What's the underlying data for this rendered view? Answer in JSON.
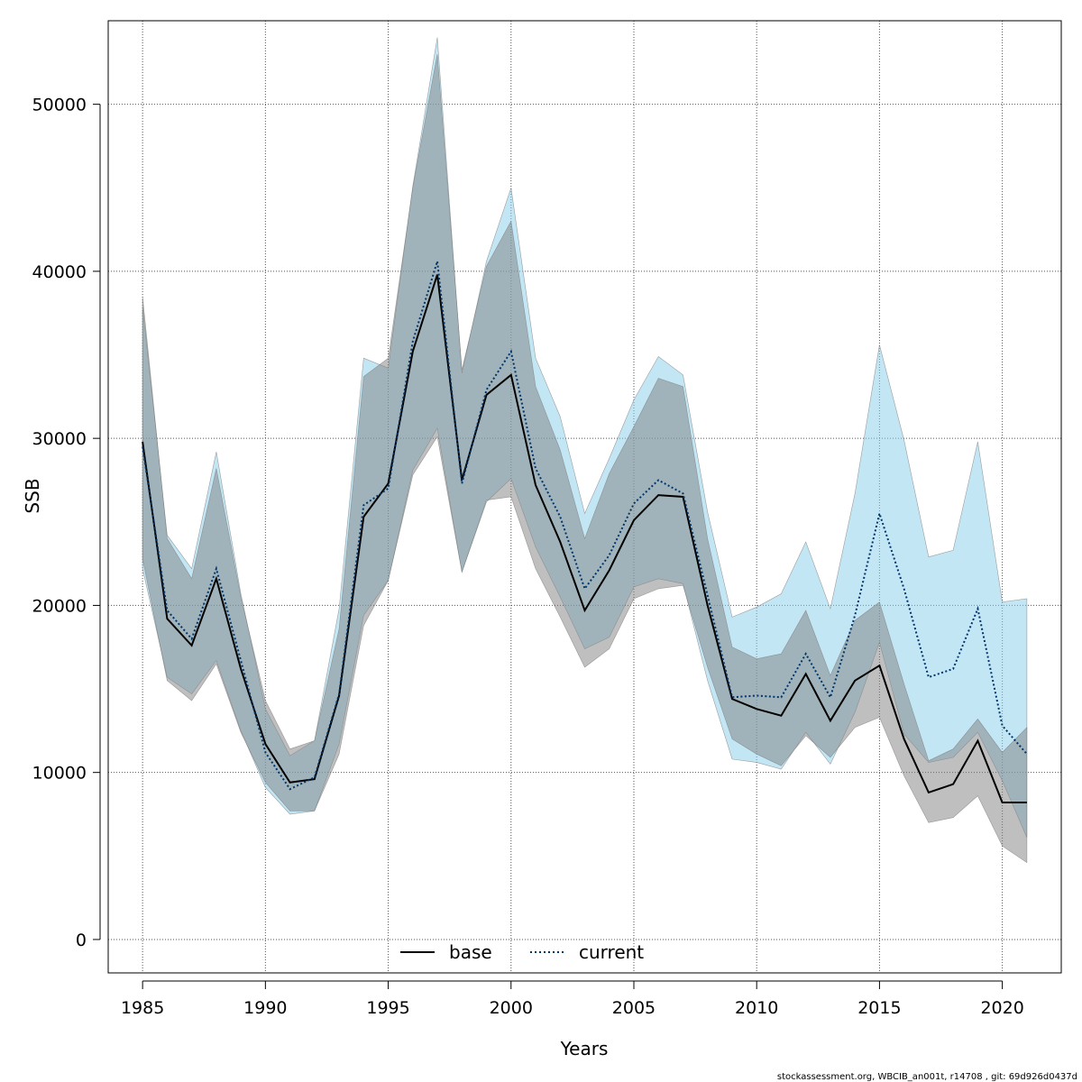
{
  "chart_data": {
    "type": "line",
    "title": "",
    "xlabel": "Years",
    "ylabel": "SSB",
    "xlim": [
      1983.6,
      2022.4
    ],
    "ylim": [
      -2000,
      55000
    ],
    "x_ticks": [
      1985,
      1990,
      1995,
      2000,
      2005,
      2010,
      2015,
      2020
    ],
    "y_ticks": [
      0,
      10000,
      20000,
      30000,
      40000,
      50000
    ],
    "grid": true,
    "legend_position": "bottom-center",
    "x": [
      1985,
      1986,
      1987,
      1988,
      1989,
      1990,
      1991,
      1992,
      1993,
      1994,
      1995,
      1996,
      1997,
      1998,
      1999,
      2000,
      2001,
      2002,
      2003,
      2004,
      2005,
      2006,
      2007,
      2008,
      2009,
      2010,
      2011,
      2012,
      2013,
      2014,
      2015,
      2016,
      2017,
      2018,
      2019,
      2020,
      2021
    ],
    "series": [
      {
        "name": "base",
        "color": "#000000",
        "line_style": "solid",
        "band_color": "#808080",
        "values": [
          29800,
          19200,
          17600,
          21600,
          16200,
          11700,
          9400,
          9600,
          14600,
          25300,
          27300,
          35200,
          39800,
          27500,
          32600,
          33800,
          27200,
          23800,
          19700,
          22100,
          25100,
          26600,
          26500,
          20000,
          14400,
          13800,
          13400,
          15900,
          13100,
          15500,
          16400,
          12000,
          8800,
          9300,
          11900,
          8200,
          8200
        ],
        "lower": [
          22800,
          15500,
          14300,
          16500,
          12400,
          9400,
          7700,
          7700,
          11100,
          18800,
          21500,
          27800,
          30100,
          22000,
          26300,
          26500,
          22200,
          19300,
          16300,
          17400,
          20400,
          21000,
          21200,
          16300,
          12000,
          11100,
          10400,
          12200,
          10900,
          12700,
          13300,
          9800,
          7000,
          7300,
          8600,
          5600,
          4600
        ],
        "upper": [
          38500,
          24000,
          21600,
          28200,
          20500,
          14300,
          11400,
          11900,
          18600,
          33700,
          34800,
          45000,
          53000,
          34100,
          40300,
          43000,
          33100,
          29300,
          24000,
          27900,
          30700,
          33600,
          33100,
          24000,
          17500,
          16800,
          17100,
          19700,
          15800,
          19100,
          20200,
          15300,
          10700,
          11400,
          13200,
          11200,
          12700
        ]
      },
      {
        "name": "current",
        "color": "#00356B",
        "line_style": "dotted",
        "band_color": "#87CEEB",
        "values": [
          29500,
          19700,
          18000,
          22200,
          16700,
          11200,
          9000,
          9700,
          14700,
          26000,
          27000,
          35800,
          40600,
          27300,
          32900,
          35200,
          28200,
          25300,
          21000,
          23000,
          26100,
          27500,
          26700,
          20600,
          14500,
          14600,
          14500,
          17100,
          14500,
          19400,
          25500,
          21000,
          15700,
          16200,
          19800,
          12800,
          11100
        ],
        "lower": [
          22200,
          15700,
          14700,
          16700,
          12500,
          9100,
          7500,
          7700,
          11700,
          19400,
          21500,
          28100,
          30600,
          22000,
          26200,
          27600,
          23500,
          20500,
          17400,
          18100,
          21100,
          21600,
          21300,
          15500,
          10800,
          10600,
          10200,
          12400,
          10500,
          13600,
          17800,
          12300,
          10600,
          10900,
          12400,
          9500,
          6100
        ],
        "upper": [
          37900,
          24200,
          22200,
          29200,
          20700,
          13800,
          11000,
          11900,
          19800,
          34800,
          34200,
          45100,
          54000,
          33900,
          40600,
          45000,
          34800,
          31300,
          25500,
          28800,
          32300,
          34900,
          33800,
          25600,
          19300,
          19900,
          20700,
          23800,
          19800,
          26700,
          35600,
          29900,
          22900,
          23300,
          29800,
          20200,
          20400
        ]
      }
    ]
  },
  "footer": "stockassessment.org, WBCIB_an001t, r14708 , git: 69d926d0437d"
}
